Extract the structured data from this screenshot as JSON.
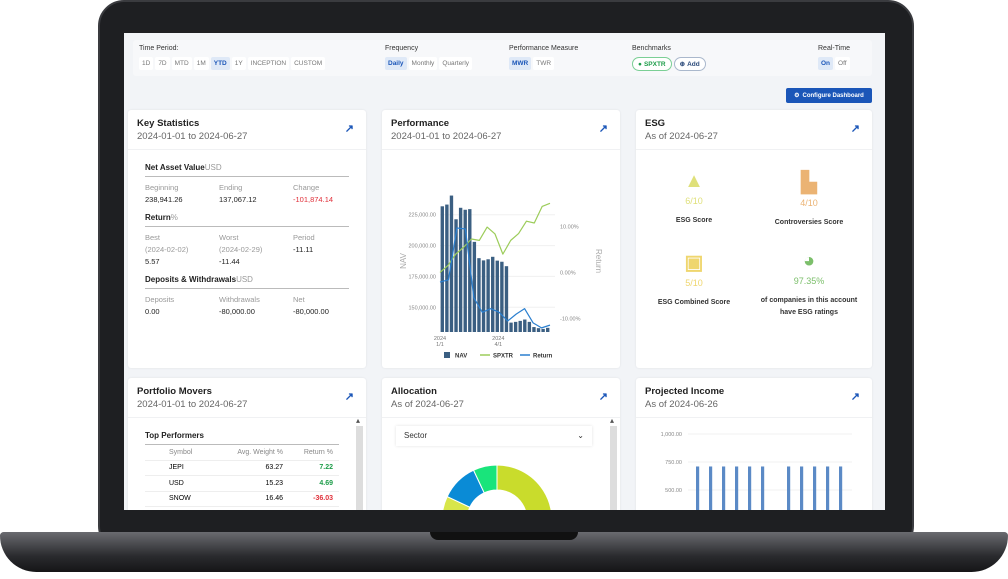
{
  "filters": {
    "time_period": {
      "label": "Time Period:",
      "options": [
        "1D",
        "7D",
        "MTD",
        "1M",
        "YTD",
        "1Y",
        "INCEPTION",
        "CUSTOM"
      ],
      "selected": "YTD"
    },
    "frequency": {
      "label": "Frequency",
      "options": [
        "Daily",
        "Monthly",
        "Quarterly"
      ],
      "selected": "Daily"
    },
    "performance_measure": {
      "label": "Performance Measure",
      "options": [
        "MWR",
        "TWR"
      ],
      "selected": "MWR"
    },
    "benchmarks": {
      "label": "Benchmarks",
      "items": [
        "SPXTR"
      ],
      "add_label": "Add"
    },
    "real_time": {
      "label": "Real-Time",
      "options": [
        "On",
        "Off"
      ],
      "selected": "On"
    }
  },
  "configure_label": "Configure Dashboard",
  "key_stats": {
    "title": "Key Statistics",
    "date": "2024-01-01 to 2024-06-27",
    "nav": {
      "title": "Net Asset Value",
      "unit": "USD",
      "labels": [
        "Beginning",
        "Ending",
        "Change"
      ],
      "values": [
        "238,941.26",
        "137,067.12",
        "-101,874.14"
      ]
    },
    "ret": {
      "title": "Return",
      "unit": "%",
      "labels": [
        "Best",
        "Worst",
        "Period"
      ],
      "dates": [
        "(2024-02-02)",
        "(2024-02-29)"
      ],
      "values": [
        "5.57",
        "-11.44",
        "-11.11"
      ]
    },
    "dw": {
      "title": "Deposits & Withdrawals",
      "unit": "USD",
      "labels": [
        "Deposits",
        "Withdrawals",
        "Net"
      ],
      "values": [
        "0.00",
        "-80,000.00",
        "-80,000.00"
      ]
    }
  },
  "performance": {
    "title": "Performance",
    "date": "2024-01-01 to 2024-06-27"
  },
  "chart_data": [
    {
      "type": "bar+line",
      "ylabel": "NAV",
      "y2label": "Return",
      "ylim": [
        130000,
        245000
      ],
      "y2lim": [
        -13,
        18
      ],
      "yticks": [
        "150,000.00",
        "175,000.00",
        "200,000.00",
        "225,000.00"
      ],
      "y2ticks": [
        "-10.00%",
        "0.00%",
        "10.00%"
      ],
      "xticks": [
        [
          "2024",
          "1/1"
        ],
        [
          "2024",
          "4/1"
        ]
      ],
      "legend": [
        "NAV",
        "SPXTR",
        "Return"
      ],
      "legend_position": "bottom",
      "colors": {
        "NAV": "#3b5f82",
        "SPXTR": "#9ccc5a",
        "Return": "#2a7fcf"
      },
      "nav_values": [
        231800,
        233200,
        240500,
        221300,
        230600,
        229000,
        229500,
        203000,
        189800,
        188000,
        188900,
        190900,
        187800,
        186900,
        183300,
        137600,
        138200,
        139000,
        140100,
        138200,
        134000,
        133100,
        132500,
        133400
      ],
      "spxtr_pct": [
        0,
        1.5,
        4,
        5.5,
        7.3,
        7,
        9.9,
        8.4,
        4,
        7,
        8.5,
        11.2,
        10.8,
        14.4,
        15.1
      ],
      "return_pct": [
        -2.1,
        -1.6,
        9.7,
        9.5,
        -5.5,
        -8.7,
        -7.9,
        -8.7,
        -10.6,
        -9.1,
        -7.9,
        -11,
        -12.1,
        -11.5
      ]
    },
    {
      "type": "bar",
      "ylim": [
        0,
        1000
      ],
      "yticks": [
        "250.00",
        "500.00",
        "750.00",
        "1,000.00"
      ],
      "values": [
        710,
        710,
        710,
        710,
        710,
        710,
        null,
        710,
        710,
        710,
        710,
        710
      ],
      "color": "#5b8ac6"
    },
    {
      "type": "pie",
      "donut": true,
      "values": [
        0.64,
        0.18,
        0.11,
        0.07
      ],
      "colors": [
        "#c9dc2c",
        "#d8e64a",
        "#0a8bd6",
        "#19e47b"
      ]
    }
  ],
  "esg": {
    "title": "ESG",
    "date": "As of 2024-06-27",
    "items": [
      {
        "value": "6/10",
        "label": "ESG Score",
        "color": "#dfe07a",
        "icon": "tree-icon"
      },
      {
        "value": "4/10",
        "label": "Controversies Score",
        "color": "#ebb373",
        "icon": "factory-icon"
      },
      {
        "value": "5/10",
        "label": "ESG Combined Score",
        "color": "#efd66e",
        "icon": "frame-icon"
      },
      {
        "value": "97.35%",
        "label": "of companies in this account have ESG ratings",
        "color": "#7cbf6b",
        "icon": "pie-chart-icon"
      }
    ]
  },
  "movers": {
    "title": "Portfolio Movers",
    "date": "2024-01-01 to 2024-06-27",
    "section": "Top Performers",
    "columns": [
      "Symbol",
      "Avg. Weight %",
      "Return %"
    ],
    "rows": [
      [
        "JEPI",
        "63.27",
        "7.22"
      ],
      [
        "USD",
        "15.23",
        "4.69"
      ],
      [
        "SNOW",
        "16.46",
        "-36.03"
      ]
    ]
  },
  "allocation": {
    "title": "Allocation",
    "date": "As of 2024-06-27",
    "select": "Sector"
  },
  "income": {
    "title": "Projected Income",
    "date": "As of 2024-06-26"
  }
}
